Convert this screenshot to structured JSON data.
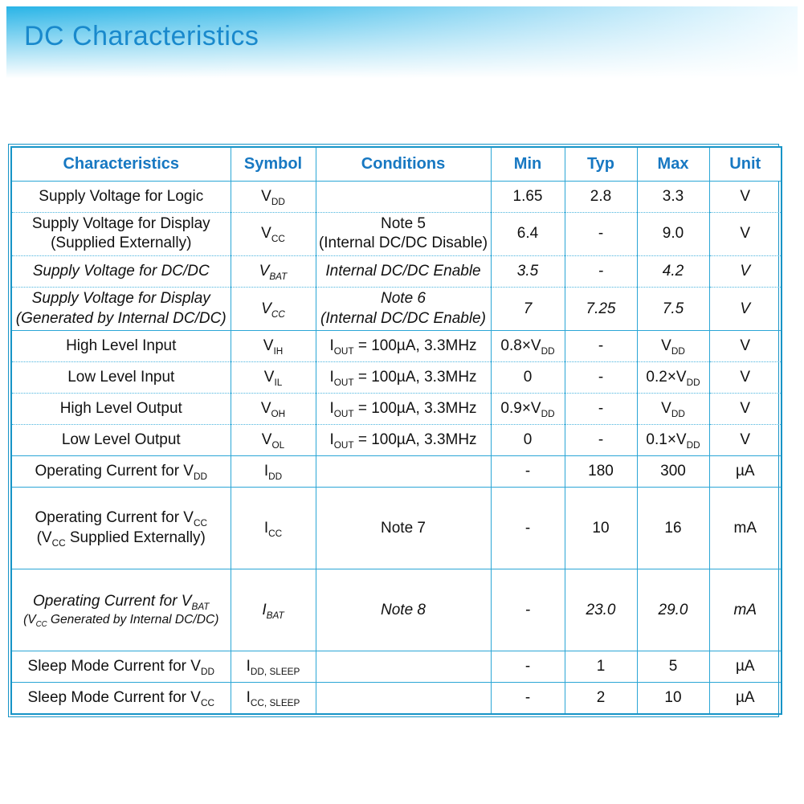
{
  "page": {
    "title": "DC Characteristics"
  },
  "table": {
    "headers": [
      "Characteristics",
      "Symbol",
      "Conditions",
      "Min",
      "Typ",
      "Max",
      "Unit"
    ],
    "rows": [
      {
        "characteristics": "Supply Voltage for Logic",
        "symbol": "V~DD~",
        "conditions": "",
        "min": "1.65",
        "typ": "2.8",
        "max": "3.3",
        "unit": "V",
        "italic": false,
        "tall": false
      },
      {
        "characteristics": [
          "Supply Voltage for Display",
          "(Supplied Externally)"
        ],
        "symbol": "V~CC~",
        "conditions": [
          "Note 5",
          "(Internal DC/DC Disable)"
        ],
        "min": "6.4",
        "typ": "-",
        "max": "9.0",
        "unit": "V",
        "italic": false,
        "tall": false
      },
      {
        "characteristics": "Supply Voltage for DC/DC",
        "symbol": "V~BAT~",
        "conditions": "Internal DC/DC Enable",
        "min": "3.5",
        "typ": "-",
        "max": "4.2",
        "unit": "V",
        "italic": true,
        "tall": false
      },
      {
        "characteristics": [
          "Supply Voltage for Display",
          "(Generated by Internal DC/DC)"
        ],
        "symbol": "V~CC~",
        "conditions": [
          "Note 6",
          "(Internal DC/DC Enable)"
        ],
        "min": "7",
        "typ": "7.25",
        "max": "7.5",
        "unit": "V",
        "italic": true,
        "tall": false
      },
      {
        "characteristics": "High Level Input",
        "symbol": "V~IH~",
        "conditions": "I~OUT~ = 100µA, 3.3MHz",
        "min": "0.8×V~DD~",
        "typ": "-",
        "max": "V~DD~",
        "unit": "V",
        "italic": false,
        "tall": false
      },
      {
        "characteristics": "Low Level Input",
        "symbol": "V~IL~",
        "conditions": "I~OUT~ = 100µA, 3.3MHz",
        "min": "0",
        "typ": "-",
        "max": "0.2×V~DD~",
        "unit": "V",
        "italic": false,
        "tall": false
      },
      {
        "characteristics": "High Level Output",
        "symbol": "V~OH~",
        "conditions": "I~OUT~ = 100µA, 3.3MHz",
        "min": "0.9×V~DD~",
        "typ": "-",
        "max": "V~DD~",
        "unit": "V",
        "italic": false,
        "tall": false
      },
      {
        "characteristics": "Low Level Output",
        "symbol": "V~OL~",
        "conditions": "I~OUT~ = 100µA, 3.3MHz",
        "min": "0",
        "typ": "-",
        "max": "0.1×V~DD~",
        "unit": "V",
        "italic": false,
        "tall": false
      },
      {
        "characteristics": "Operating Current for V~DD~",
        "symbol": "I~DD~",
        "conditions": "",
        "min": "-",
        "typ": "180",
        "max": "300",
        "unit": "µA",
        "italic": false,
        "tall": false
      },
      {
        "characteristics": [
          "Operating Current for V~CC~",
          "(V~CC~ Supplied Externally)"
        ],
        "symbol": "I~CC~",
        "conditions": "Note 7",
        "min": "-",
        "typ": "10",
        "max": "16",
        "unit": "mA",
        "italic": false,
        "tall": true
      },
      {
        "characteristics": [
          "Operating Current for V~BAT~",
          "(V~CC~ Generated by Internal DC/DC)"
        ],
        "symbol": "I~BAT~",
        "conditions": "Note 8",
        "min": "-",
        "typ": "23.0",
        "max": "29.0",
        "unit": "mA",
        "italic": true,
        "tall": true,
        "small_line2": true
      },
      {
        "characteristics": "Sleep Mode Current for V~DD~",
        "symbol": "I~DD, SLEEP~",
        "conditions": "",
        "min": "-",
        "typ": "1",
        "max": "5",
        "unit": "µA",
        "italic": false,
        "tall": false
      },
      {
        "characteristics": "Sleep Mode Current for V~CC~",
        "symbol": "I~CC, SLEEP~",
        "conditions": "",
        "min": "-",
        "typ": "2",
        "max": "10",
        "unit": "µA",
        "italic": false,
        "tall": false
      }
    ]
  }
}
